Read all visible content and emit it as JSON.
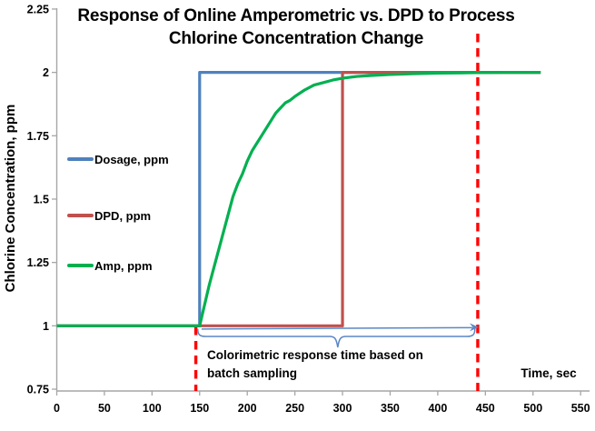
{
  "chart_data": {
    "type": "line",
    "title_lines": [
      "Response of Online Amperometric vs. DPD to Process",
      "Chlorine Concentration Change"
    ],
    "xlabel": "Time, sec",
    "ylabel": "Chlorine Concentration, ppm",
    "xlim": [
      0,
      550
    ],
    "ylim": [
      0.75,
      2.25
    ],
    "x_ticks": [
      "0",
      "50",
      "100",
      "150",
      "200",
      "250",
      "300",
      "350",
      "400",
      "450",
      "500",
      "550"
    ],
    "y_ticks": [
      "0.75",
      "1",
      "1.25",
      "1.5",
      "1.75",
      "2",
      "2.25"
    ],
    "grid": false,
    "legend_position": "inside-left",
    "axis_color": "#A6A6A6",
    "text_color": "#000000",
    "series": [
      {
        "name": "Dosage, ppm",
        "color": "#4F81BD",
        "points": [
          [
            0,
            1
          ],
          [
            150,
            1
          ],
          [
            150,
            2
          ],
          [
            508,
            2
          ]
        ]
      },
      {
        "name": "DPD, ppm",
        "color": "#C0504D",
        "points": [
          [
            0,
            1
          ],
          [
            300,
            1
          ],
          [
            300,
            2
          ],
          [
            508,
            2
          ]
        ]
      },
      {
        "name": "Amp, ppm",
        "color": "#00B050",
        "points": [
          [
            0,
            1
          ],
          [
            150,
            1
          ],
          [
            155,
            1.08
          ],
          [
            160,
            1.16
          ],
          [
            165,
            1.23
          ],
          [
            170,
            1.3
          ],
          [
            175,
            1.37
          ],
          [
            180,
            1.44
          ],
          [
            185,
            1.51
          ],
          [
            190,
            1.56
          ],
          [
            195,
            1.6
          ],
          [
            200,
            1.65
          ],
          [
            205,
            1.69
          ],
          [
            210,
            1.72
          ],
          [
            215,
            1.75
          ],
          [
            220,
            1.78
          ],
          [
            225,
            1.81
          ],
          [
            230,
            1.84
          ],
          [
            235,
            1.86
          ],
          [
            240,
            1.88
          ],
          [
            245,
            1.89
          ],
          [
            250,
            1.905
          ],
          [
            260,
            1.93
          ],
          [
            270,
            1.95
          ],
          [
            280,
            1.96
          ],
          [
            290,
            1.97
          ],
          [
            300,
            1.977
          ],
          [
            315,
            1.984
          ],
          [
            330,
            1.988
          ],
          [
            350,
            1.992
          ],
          [
            375,
            1.995
          ],
          [
            400,
            1.997
          ],
          [
            440,
            1.999
          ],
          [
            470,
            2
          ],
          [
            508,
            2
          ]
        ]
      }
    ],
    "annotations": {
      "dashed_line_color": "#FF0000",
      "dashed_lines_t": [
        146,
        442
      ],
      "arrow": {
        "from_t": 152,
        "to_t": 443,
        "at_value": 1
      },
      "brace": {
        "from_t": 148,
        "to_t": 439,
        "center_t": 295
      },
      "color": "#5B87C5",
      "text_lines": [
        "Colorimetric response time based on",
        "batch sampling"
      ]
    }
  }
}
